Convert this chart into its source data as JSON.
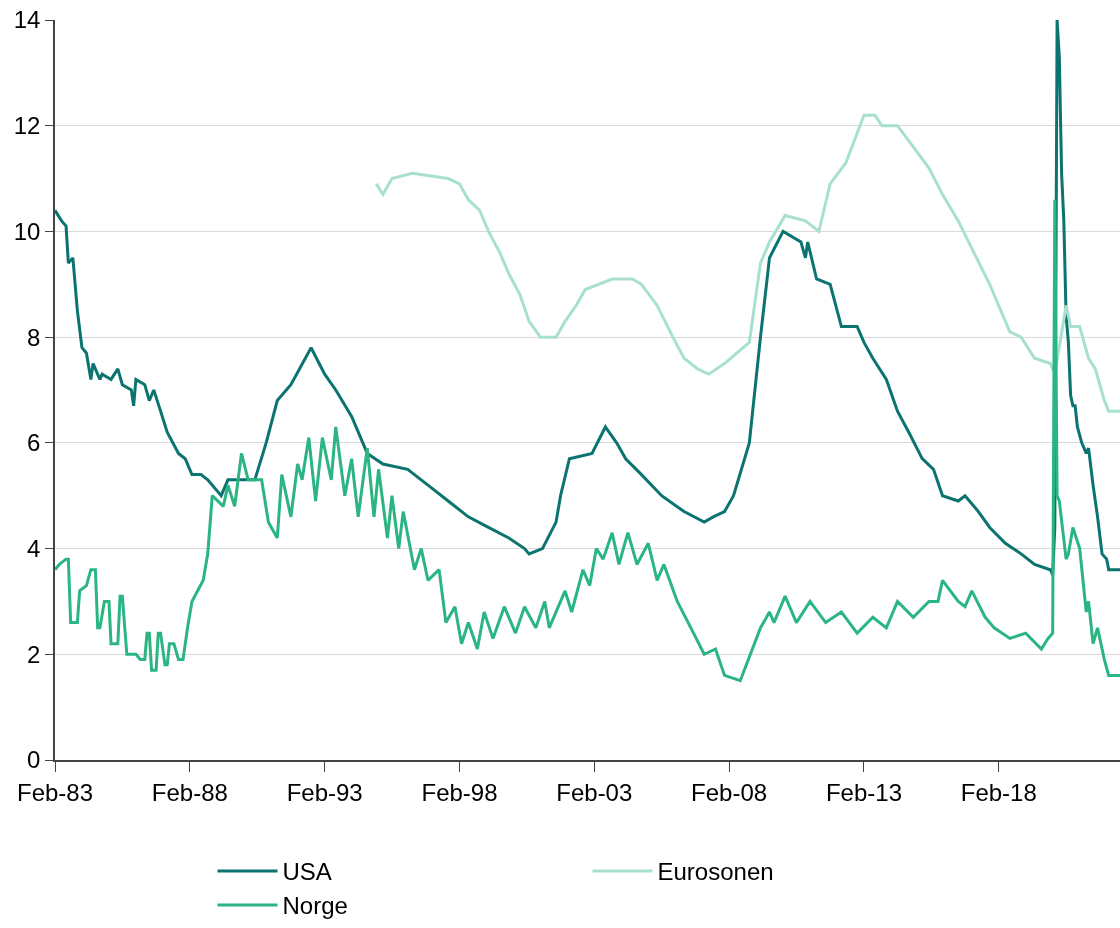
{
  "chart_data": {
    "type": "line",
    "legend": "bottom",
    "grid": "y",
    "marker": "none",
    "line_style": "solid",
    "xlim": [
      "1983-02",
      "2022-08"
    ],
    "xticks": [
      {
        "value": "1983-02",
        "label": "Feb-83"
      },
      {
        "value": "1988-02",
        "label": "Feb-88"
      },
      {
        "value": "1993-02",
        "label": "Feb-93"
      },
      {
        "value": "1998-02",
        "label": "Feb-98"
      },
      {
        "value": "2003-02",
        "label": "Feb-03"
      },
      {
        "value": "2008-02",
        "label": "Feb-08"
      },
      {
        "value": "2013-02",
        "label": "Feb-13"
      },
      {
        "value": "2018-02",
        "label": "Feb-18"
      }
    ],
    "ylim": [
      0,
      14
    ],
    "yticks": [
      0,
      2,
      4,
      6,
      8,
      10,
      12,
      14
    ],
    "series": [
      {
        "name": "USA",
        "color": "#0b7370",
        "x": [
          "1983-02",
          "1983-05",
          "1983-07",
          "1983-08",
          "1983-10",
          "1983-12",
          "1984-02",
          "1984-04",
          "1984-06",
          "1984-07",
          "1984-10",
          "1984-11",
          "1985-03",
          "1985-06",
          "1985-08",
          "1985-12",
          "1986-01",
          "1986-02",
          "1986-06",
          "1986-08",
          "1986-10",
          "1987-01",
          "1987-04",
          "1987-09",
          "1987-12",
          "1988-03",
          "1988-07",
          "1988-10",
          "1989-04",
          "1989-07",
          "1989-11",
          "1990-07",
          "1990-12",
          "1991-05",
          "1991-11",
          "1992-08",
          "1993-02",
          "1993-07",
          "1994-02",
          "1994-09",
          "1995-04",
          "1996-03",
          "1996-12",
          "1997-09",
          "1998-06",
          "1999-03",
          "1999-12",
          "2000-07",
          "2000-09",
          "2001-03",
          "2001-09",
          "2001-11",
          "2002-03",
          "2003-01",
          "2003-07",
          "2003-12",
          "2004-04",
          "2004-11",
          "2005-08",
          "2006-06",
          "2007-03",
          "2007-07",
          "2007-12",
          "2008-04",
          "2008-11",
          "2009-04",
          "2009-08",
          "2010-02",
          "2010-10",
          "2010-12",
          "2011-01",
          "2011-05",
          "2011-11",
          "2012-04",
          "2012-11",
          "2013-02",
          "2013-06",
          "2013-12",
          "2014-05",
          "2014-10",
          "2015-04",
          "2015-09",
          "2016-01",
          "2016-08",
          "2016-11",
          "2017-05",
          "2017-10",
          "2018-05",
          "2018-12",
          "2019-06",
          "2020-01",
          "2020-02",
          "2020-03",
          "2020-04",
          "2020-05",
          "2020-06",
          "2020-07",
          "2020-08",
          "2020-09",
          "2020-10",
          "2020-11",
          "2020-12",
          "2021-01",
          "2021-03",
          "2021-05",
          "2021-06",
          "2021-08",
          "2021-10",
          "2021-12",
          "2022-02",
          "2022-03",
          "2022-08"
        ],
        "values": [
          10.4,
          10.2,
          10.1,
          9.4,
          9.5,
          8.5,
          7.8,
          7.7,
          7.2,
          7.5,
          7.2,
          7.3,
          7.2,
          7.4,
          7.1,
          7.0,
          6.7,
          7.2,
          7.1,
          6.8,
          7.0,
          6.6,
          6.2,
          5.8,
          5.7,
          5.4,
          5.4,
          5.3,
          5.0,
          5.3,
          5.3,
          5.3,
          6.0,
          6.8,
          7.1,
          7.8,
          7.3,
          7.0,
          6.5,
          5.8,
          5.6,
          5.5,
          5.2,
          4.9,
          4.6,
          4.4,
          4.2,
          4.0,
          3.9,
          4.0,
          4.5,
          5.0,
          5.7,
          5.8,
          6.3,
          6.0,
          5.7,
          5.4,
          5.0,
          4.7,
          4.5,
          4.6,
          4.7,
          5.0,
          6.0,
          8.0,
          9.5,
          10.0,
          9.8,
          9.5,
          9.8,
          9.1,
          9.0,
          8.2,
          8.2,
          7.9,
          7.6,
          7.2,
          6.6,
          6.2,
          5.7,
          5.5,
          5.0,
          4.9,
          5.0,
          4.7,
          4.4,
          4.1,
          3.9,
          3.7,
          3.6,
          3.5,
          4.4,
          14,
          13.3,
          11.1,
          10.2,
          8.4,
          7.9,
          6.9,
          6.7,
          6.7,
          6.3,
          6.0,
          5.8,
          5.9,
          5.2,
          4.6,
          3.9,
          3.8,
          3.6,
          3.6
        ]
      },
      {
        "name": "Eurosonen",
        "color": "#a8e0cf",
        "x": [
          "1995-01",
          "1995-04",
          "1995-08",
          "1996-05",
          "1997-09",
          "1998-02",
          "1998-06",
          "1998-11",
          "1999-03",
          "1999-08",
          "1999-12",
          "2000-05",
          "2000-09",
          "2001-02",
          "2001-09",
          "2002-01",
          "2002-06",
          "2002-10",
          "2003-10",
          "2004-07",
          "2004-11",
          "2005-06",
          "2006-01",
          "2006-06",
          "2006-12",
          "2007-05",
          "2007-12",
          "2008-11",
          "2009-04",
          "2009-08",
          "2010-03",
          "2010-12",
          "2011-06",
          "2011-11",
          "2012-06",
          "2013-02",
          "2013-07",
          "2013-10",
          "2014-05",
          "2014-12",
          "2015-07",
          "2016-01",
          "2016-08",
          "2017-03",
          "2017-10",
          "2018-07",
          "2018-12",
          "2019-06",
          "2020-01",
          "2020-03",
          "2020-08",
          "2020-10",
          "2021-02",
          "2021-06",
          "2021-09",
          "2022-01",
          "2022-03",
          "2022-08"
        ],
        "values": [
          10.9,
          10.7,
          11.0,
          11.1,
          11.0,
          10.9,
          10.6,
          10.4,
          10.0,
          9.6,
          9.2,
          8.8,
          8.3,
          8.0,
          8.0,
          8.3,
          8.6,
          8.9,
          9.1,
          9.1,
          9.0,
          8.6,
          8.0,
          7.6,
          7.4,
          7.3,
          7.5,
          7.9,
          9.4,
          9.8,
          10.3,
          10.2,
          10.0,
          10.9,
          11.3,
          12.2,
          12.2,
          12.0,
          12.0,
          11.6,
          11.2,
          10.7,
          10.2,
          9.6,
          9.0,
          8.1,
          8.0,
          7.6,
          7.5,
          7.3,
          8.6,
          8.2,
          8.2,
          7.6,
          7.4,
          6.8,
          6.6,
          6.6
        ]
      },
      {
        "name": "Norge",
        "color": "#2bb583",
        "x": [
          "1983-02",
          "1983-04",
          "1983-07",
          "1983-08",
          "1983-09",
          "1983-12",
          "1984-01",
          "1984-04",
          "1984-06",
          "1984-08",
          "1984-09",
          "1984-10",
          "1984-12",
          "1985-02",
          "1985-03",
          "1985-06",
          "1985-07",
          "1985-08",
          "1985-10",
          "1986-02",
          "1986-04",
          "1986-06",
          "1986-07",
          "1986-08",
          "1986-09",
          "1986-11",
          "1986-12",
          "1987-01",
          "1987-03",
          "1987-04",
          "1987-05",
          "1987-07",
          "1987-09",
          "1987-11",
          "1988-01",
          "1988-03",
          "1988-08",
          "1988-10",
          "1988-12",
          "1989-05",
          "1989-07",
          "1989-10",
          "1990-01",
          "1990-04",
          "1990-10",
          "1991-01",
          "1991-05",
          "1991-07",
          "1991-11",
          "1992-02",
          "1992-04",
          "1992-07",
          "1992-10",
          "1993-01",
          "1993-05",
          "1993-07",
          "1993-11",
          "1994-02",
          "1994-05",
          "1994-09",
          "1994-12",
          "1995-02",
          "1995-06",
          "1995-08",
          "1995-11",
          "1996-01",
          "1996-06",
          "1996-09",
          "1996-12",
          "1997-05",
          "1997-08",
          "1997-12",
          "1998-03",
          "1998-06",
          "1998-10",
          "1999-01",
          "1999-05",
          "1999-10",
          "2000-03",
          "2000-07",
          "2000-12",
          "2001-04",
          "2001-06",
          "2002-01",
          "2002-04",
          "2002-09",
          "2002-12",
          "2003-03",
          "2003-06",
          "2003-10",
          "2004-01",
          "2004-05",
          "2004-09",
          "2005-02",
          "2005-06",
          "2005-09",
          "2006-03",
          "2006-09",
          "2007-03",
          "2007-08",
          "2007-12",
          "2008-07",
          "2009-04",
          "2009-08",
          "2009-10",
          "2010-03",
          "2010-08",
          "2011-02",
          "2011-09",
          "2012-04",
          "2012-11",
          "2013-06",
          "2013-12",
          "2014-05",
          "2014-12",
          "2015-07",
          "2015-11",
          "2016-01",
          "2016-08",
          "2016-11",
          "2017-02",
          "2017-08",
          "2017-12",
          "2018-07",
          "2019-02",
          "2019-09",
          "2019-12",
          "2020-02",
          "2020-03",
          "2020-04",
          "2020-05",
          "2020-08",
          "2020-09",
          "2020-11",
          "2021-02",
          "2021-05",
          "2021-06",
          "2021-08",
          "2021-10",
          "2022-01",
          "2022-03",
          "2022-08"
        ],
        "values": [
          3.6,
          3.7,
          3.8,
          3.8,
          2.6,
          2.6,
          3.2,
          3.3,
          3.6,
          3.6,
          2.5,
          2.5,
          3.0,
          3.0,
          2.2,
          2.2,
          3.1,
          3.1,
          2.0,
          2.0,
          1.9,
          1.9,
          2.4,
          2.4,
          1.7,
          1.7,
          2.4,
          2.4,
          1.8,
          1.8,
          2.2,
          2.2,
          1.9,
          1.9,
          2.5,
          3.0,
          3.4,
          3.9,
          5.0,
          4.8,
          5.2,
          4.8,
          5.8,
          5.3,
          5.3,
          4.5,
          4.2,
          5.4,
          4.6,
          5.6,
          5.3,
          6.1,
          4.9,
          6.1,
          5.3,
          6.3,
          5.0,
          5.7,
          4.6,
          5.9,
          4.6,
          5.5,
          4.2,
          5.0,
          4.0,
          4.7,
          3.6,
          4.0,
          3.4,
          3.6,
          2.6,
          2.9,
          2.2,
          2.6,
          2.1,
          2.8,
          2.3,
          2.9,
          2.4,
          2.9,
          2.5,
          3.0,
          2.5,
          3.2,
          2.8,
          3.6,
          3.3,
          4.0,
          3.8,
          4.3,
          3.7,
          4.3,
          3.7,
          4.1,
          3.4,
          3.7,
          3.0,
          2.5,
          2.0,
          2.1,
          1.6,
          1.5,
          2.5,
          2.8,
          2.6,
          3.1,
          2.6,
          3.0,
          2.6,
          2.8,
          2.4,
          2.7,
          2.5,
          3.0,
          2.7,
          3.0,
          3.0,
          3.4,
          3.0,
          2.9,
          3.2,
          2.7,
          2.5,
          2.3,
          2.4,
          2.1,
          2.3,
          2.4,
          10.6,
          5.0,
          4.9,
          3.8,
          3.9,
          4.4,
          4.0,
          2.8,
          3.0,
          2.2,
          2.5,
          1.9,
          1.6,
          1.6
        ]
      }
    ]
  }
}
